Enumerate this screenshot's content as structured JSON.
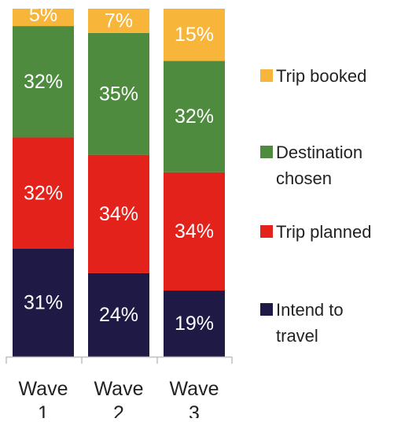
{
  "chart_data": {
    "type": "bar",
    "stacked": true,
    "percent_stacked": true,
    "categories": [
      "Wave 1",
      "Wave 2",
      "Wave 3"
    ],
    "category_label_lines": [
      [
        "Wave",
        "1"
      ],
      [
        "Wave",
        "2"
      ],
      [
        "Wave",
        "3"
      ]
    ],
    "series": [
      {
        "name": "Intend to travel",
        "name_lines": [
          "Intend to",
          "travel"
        ],
        "color": "#1f1a45",
        "values": [
          31,
          24,
          19
        ]
      },
      {
        "name": "Trip planned",
        "name_lines": [
          "Trip planned"
        ],
        "color": "#e3221b",
        "values": [
          32,
          34,
          34
        ]
      },
      {
        "name": "Destination chosen",
        "name_lines": [
          "Destination",
          "chosen"
        ],
        "color": "#4e8b3f",
        "values": [
          32,
          35,
          32
        ]
      },
      {
        "name": "Trip booked",
        "name_lines": [
          "Trip booked"
        ],
        "color": "#f7b53a",
        "values": [
          5,
          7,
          15
        ]
      }
    ],
    "value_suffix": "%",
    "ylim": [
      0,
      100
    ],
    "title": "",
    "xlabel": "",
    "ylabel": "",
    "grid": false,
    "legend_position": "right",
    "legend_order": [
      "Trip booked",
      "Destination chosen",
      "Trip planned",
      "Intend to travel"
    ]
  }
}
